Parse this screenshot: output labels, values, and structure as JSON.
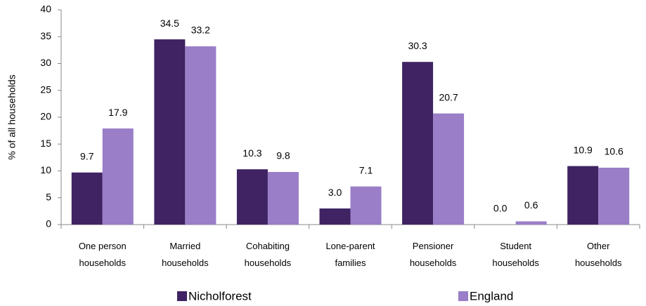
{
  "chart_data": {
    "type": "bar",
    "y_label": "% of all households",
    "categories": [
      [
        "One person",
        "households"
      ],
      [
        "Married",
        "households"
      ],
      [
        "Cohabiting",
        "households"
      ],
      [
        "Lone-parent",
        "families"
      ],
      [
        "Pensioner",
        "households"
      ],
      [
        "Student",
        "households"
      ],
      [
        "Other",
        "households"
      ]
    ],
    "series": [
      {
        "name": "Nicholforest",
        "color": "#3f2363",
        "values": [
          9.7,
          34.5,
          10.3,
          3,
          30.3,
          0,
          10.9
        ],
        "value_labels": [
          "9.7",
          "34.5",
          "10.3",
          "3.0",
          "30.3",
          "0.0",
          "10.9"
        ]
      },
      {
        "name": "England",
        "color": "#9a7ec8",
        "values": [
          17.9,
          33.2,
          9.8,
          7.1,
          20.7,
          0.6,
          10.6
        ],
        "value_labels": [
          "17.9",
          "33.2",
          "9.8",
          "7.1",
          "20.7",
          "0.6",
          "10.6"
        ]
      }
    ],
    "ylim": [
      0,
      40
    ],
    "yticks": [
      0,
      5,
      10,
      15,
      20,
      25,
      30,
      35,
      40
    ],
    "grid": false,
    "legend": "bottom"
  }
}
